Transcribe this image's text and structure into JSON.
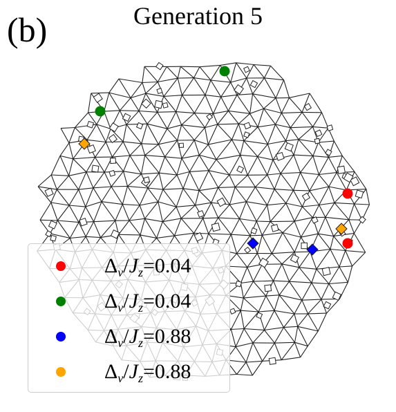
{
  "panel_label": "(b)",
  "title": "Generation 5",
  "colors": {
    "red": "#ff0000",
    "green": "#008000",
    "blue": "#0000ff",
    "orange": "#ffa500",
    "edge": "#222222"
  },
  "legend": [
    {
      "color": "#ff0000",
      "symbol": "Δ",
      "sub1": "ν",
      "sep": "/",
      "J": "J",
      "sub2": "z",
      "eq": "=",
      "value": "0.04"
    },
    {
      "color": "#008000",
      "symbol": "Δ",
      "sub1": "ν",
      "sep": "/",
      "J": "J",
      "sub2": "z",
      "eq": "=",
      "value": "0.04"
    },
    {
      "color": "#0000ff",
      "symbol": "Δ",
      "sub1": "ν",
      "sep": "/",
      "J": "J",
      "sub2": "z",
      "eq": "=",
      "value": "0.88"
    },
    {
      "color": "#ffa500",
      "symbol": "Δ",
      "sub1": "ν",
      "sep": "/",
      "J": "J",
      "sub2": "z",
      "eq": "=",
      "value": "0.88"
    }
  ],
  "markers": [
    {
      "name": "red-marker-1",
      "shape": "circle",
      "color": "#ff0000"
    },
    {
      "name": "red-marker-2",
      "shape": "circle",
      "color": "#ff0000"
    },
    {
      "name": "green-marker-1",
      "shape": "circle",
      "color": "#008000"
    },
    {
      "name": "green-marker-2",
      "shape": "circle",
      "color": "#008000"
    },
    {
      "name": "blue-marker-1",
      "shape": "diamond",
      "color": "#0000ff"
    },
    {
      "name": "blue-marker-2",
      "shape": "diamond",
      "color": "#0000ff"
    },
    {
      "name": "orange-marker-1",
      "shape": "diamond",
      "color": "#ffa500"
    },
    {
      "name": "orange-marker-2",
      "shape": "diamond",
      "color": "#ffa500"
    }
  ]
}
